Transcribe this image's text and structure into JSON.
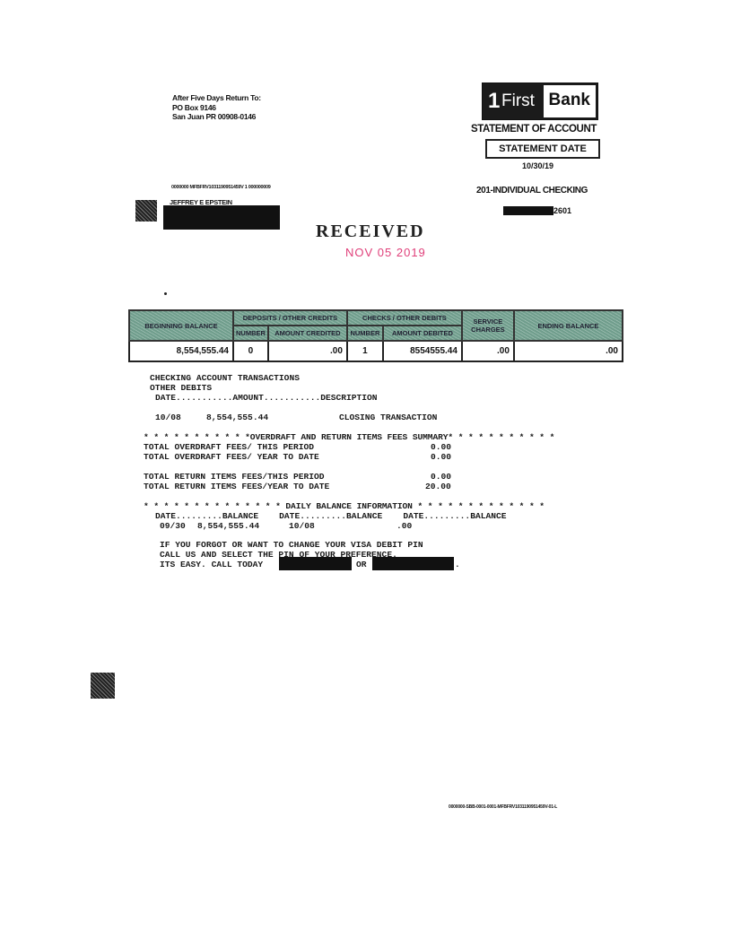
{
  "return_address": {
    "line1": "After Five Days Return To:",
    "line2": "PO Box 9146",
    "line3": "San Juan PR 00908-0146"
  },
  "logo": {
    "number": "1",
    "first": "First",
    "bank": "Bank"
  },
  "statement": {
    "title": "STATEMENT OF ACCOUNT",
    "date_label": "STATEMENT DATE",
    "date": "10/30/19",
    "account_type": "201-INDIVIDUAL CHECKING",
    "account_suffix": "2601"
  },
  "mailing": {
    "code_line": "0000000 MFBFRV1031190951459V 1 000000009",
    "name": "JEFFREY E EPSTEIN"
  },
  "stamp": {
    "received": "RECEIVED",
    "date": "NOV 05 2019",
    "color": "#e0407a"
  },
  "summary": {
    "headers": {
      "beginning_balance": "BEGINNING BALANCE",
      "deposits": "DEPOSITS / OTHER CREDITS",
      "checks": "CHECKS / OTHER DEBITS",
      "service_charges": "SERVICE CHARGES",
      "ending_balance": "ENDING BALANCE",
      "number": "NUMBER",
      "amount_credited": "AMOUNT CREDITED",
      "amount_debited": "AMOUNT DEBITED"
    },
    "values": {
      "beginning_balance": "8,554,555.44",
      "deposits_number": "0",
      "amount_credited": ".00",
      "checks_number": "1",
      "amount_debited": "8554555.44",
      "service_charges": ".00",
      "ending_balance": ".00"
    }
  },
  "transactions": {
    "title": "CHECKING ACCOUNT TRANSACTIONS",
    "subtitle": "OTHER DEBITS",
    "columns": "DATE...........AMOUNT...........DESCRIPTION",
    "rows": [
      {
        "date": "10/08",
        "amount": "8,554,555.44",
        "description": "CLOSING TRANSACTION"
      }
    ]
  },
  "fees": {
    "header": "* * * * * * * * * * *OVERDRAFT AND RETURN ITEMS FEES SUMMARY* * * * * * * * * * *",
    "items": [
      {
        "label": "TOTAL OVERDRAFT FEES/ THIS PERIOD",
        "value": "0.00"
      },
      {
        "label": "TOTAL OVERDRAFT FEES/ YEAR TO DATE",
        "value": "0.00"
      },
      {
        "label": "TOTAL RETURN ITEMS FEES/THIS PERIOD",
        "value": "0.00"
      },
      {
        "label": "TOTAL RETURN ITEMS FEES/YEAR TO DATE",
        "value": "20.00"
      }
    ]
  },
  "daily_balance": {
    "header": "* * * * * * * * * * * * * * DAILY BALANCE INFORMATION * * * * * * * * * * * * *",
    "columns": "DATE.........BALANCE    DATE.........BALANCE    DATE.........BALANCE",
    "entries": [
      {
        "date": "09/30",
        "balance": "8,554,555.44"
      },
      {
        "date": "10/08",
        "balance": ".00"
      }
    ]
  },
  "message": {
    "line1": "IF YOU FORGOT OR WANT TO CHANGE YOUR VISA DEBIT PIN",
    "line2": "CALL US AND SELECT THE PIN OF YOUR PREFERENCE.",
    "line3": "ITS EASY. CALL TODAY",
    "or": "OR",
    "end": "."
  },
  "footer_code": "0000000-SBB-0001-0001-MFBFRV1031190951459V-01-L"
}
